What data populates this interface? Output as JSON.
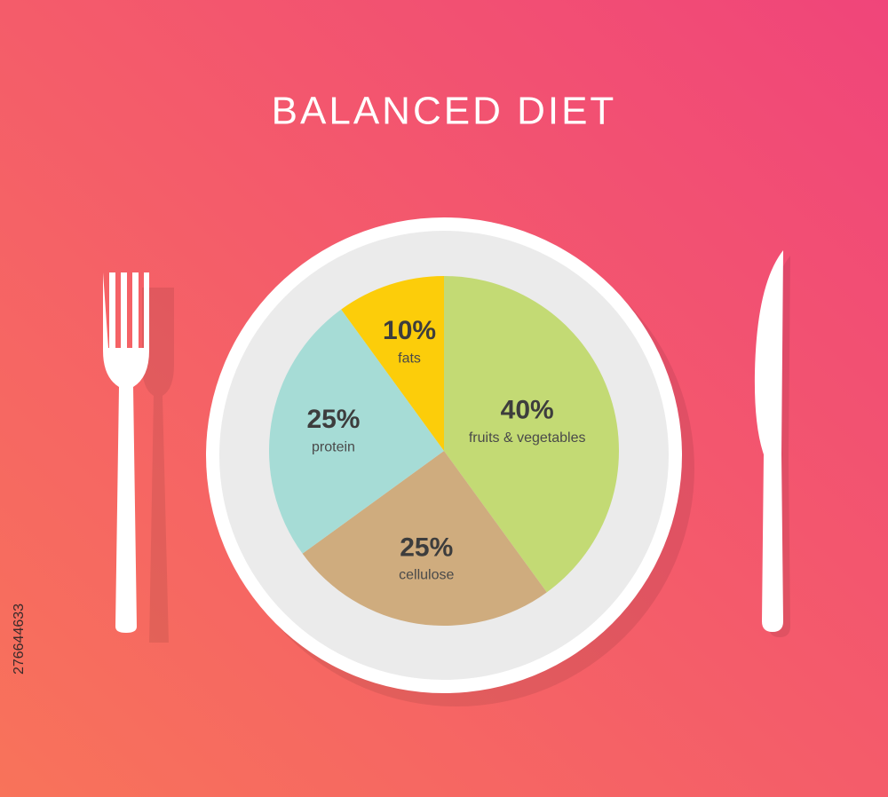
{
  "chart_data": {
    "type": "pie",
    "title": "BALANCED DIET",
    "categories": [
      "fruits & vegetables",
      "cellulose",
      "protein",
      "fats"
    ],
    "values": [
      40,
      25,
      25,
      10
    ],
    "value_labels": [
      "40%",
      "25%",
      "25%",
      "10%"
    ],
    "colors": [
      "#c3da74",
      "#cfac7e",
      "#a6dcd6",
      "#fccd0a"
    ]
  },
  "stock_id": "276644633"
}
